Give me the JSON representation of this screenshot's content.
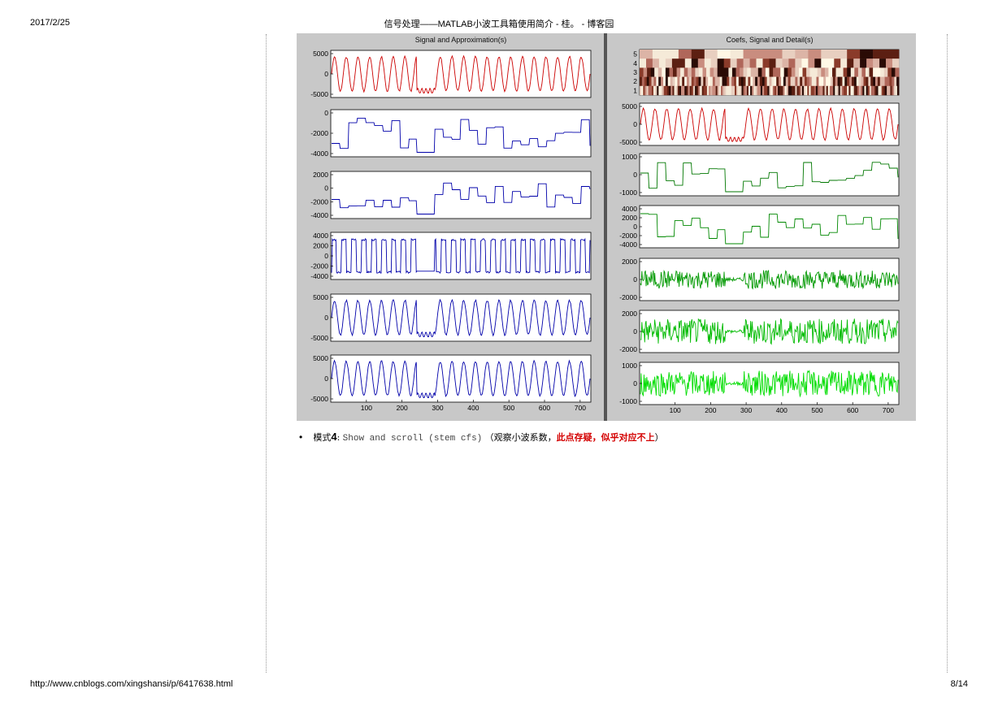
{
  "header": {
    "date": "2017/2/25",
    "title": "信号处理——MATLAB小波工具箱使用简介 - 桂。 - 博客园"
  },
  "footer": {
    "url": "http://www.cnblogs.com/xingshansi/p/6417638.html",
    "page": "8/14"
  },
  "figure": {
    "left_title": "Signal and Approximation(s)",
    "right_title": "Coefs, Signal and Detail(s)",
    "x_ticks": [
      "100",
      "200",
      "300",
      "400",
      "500",
      "600",
      "700"
    ],
    "left_rows": [
      {
        "color": "#cc0000",
        "ticks": [
          "5000",
          "0",
          "-5000"
        ]
      },
      {
        "color": "#0000aa",
        "ticks": [
          "0",
          "-2000",
          "-4000"
        ]
      },
      {
        "color": "#0000aa",
        "ticks": [
          "2000",
          "0",
          "-2000",
          "-4000"
        ]
      },
      {
        "color": "#0000aa",
        "ticks": [
          "4000",
          "2000",
          "0",
          "-2000",
          "-4000"
        ]
      },
      {
        "color": "#0000aa",
        "ticks": [
          "5000",
          "0",
          "-5000"
        ]
      },
      {
        "color": "#0000aa",
        "ticks": [
          "5000",
          "0",
          "-5000"
        ]
      }
    ],
    "right_rows": [
      {
        "color": "#cc0000",
        "ticks": [
          "5000",
          "0",
          "-5000"
        ]
      },
      {
        "color": "#007700",
        "ticks": [
          "1000",
          "0",
          "-1000"
        ]
      },
      {
        "color": "#008800",
        "ticks": [
          "4000",
          "2000",
          "0",
          "-2000",
          "-4000"
        ]
      },
      {
        "color": "#009900",
        "ticks": [
          "2000",
          "0",
          "-2000"
        ]
      },
      {
        "color": "#00bb00",
        "ticks": [
          "2000",
          "0",
          "-2000"
        ]
      },
      {
        "color": "#00dd00",
        "ticks": [
          "1000",
          "0",
          "-1000"
        ]
      }
    ],
    "coef_levels": [
      "5",
      "4",
      "3",
      "2",
      "1"
    ]
  },
  "bullet": {
    "prefix": "模式",
    "number": "4",
    "colon": ":",
    "mono_text": "Show and scroll (stem cfs)",
    "note_open": "（观察小波系数，",
    "note_red": "此点存疑，似乎对应不上",
    "note_close": "）"
  }
}
